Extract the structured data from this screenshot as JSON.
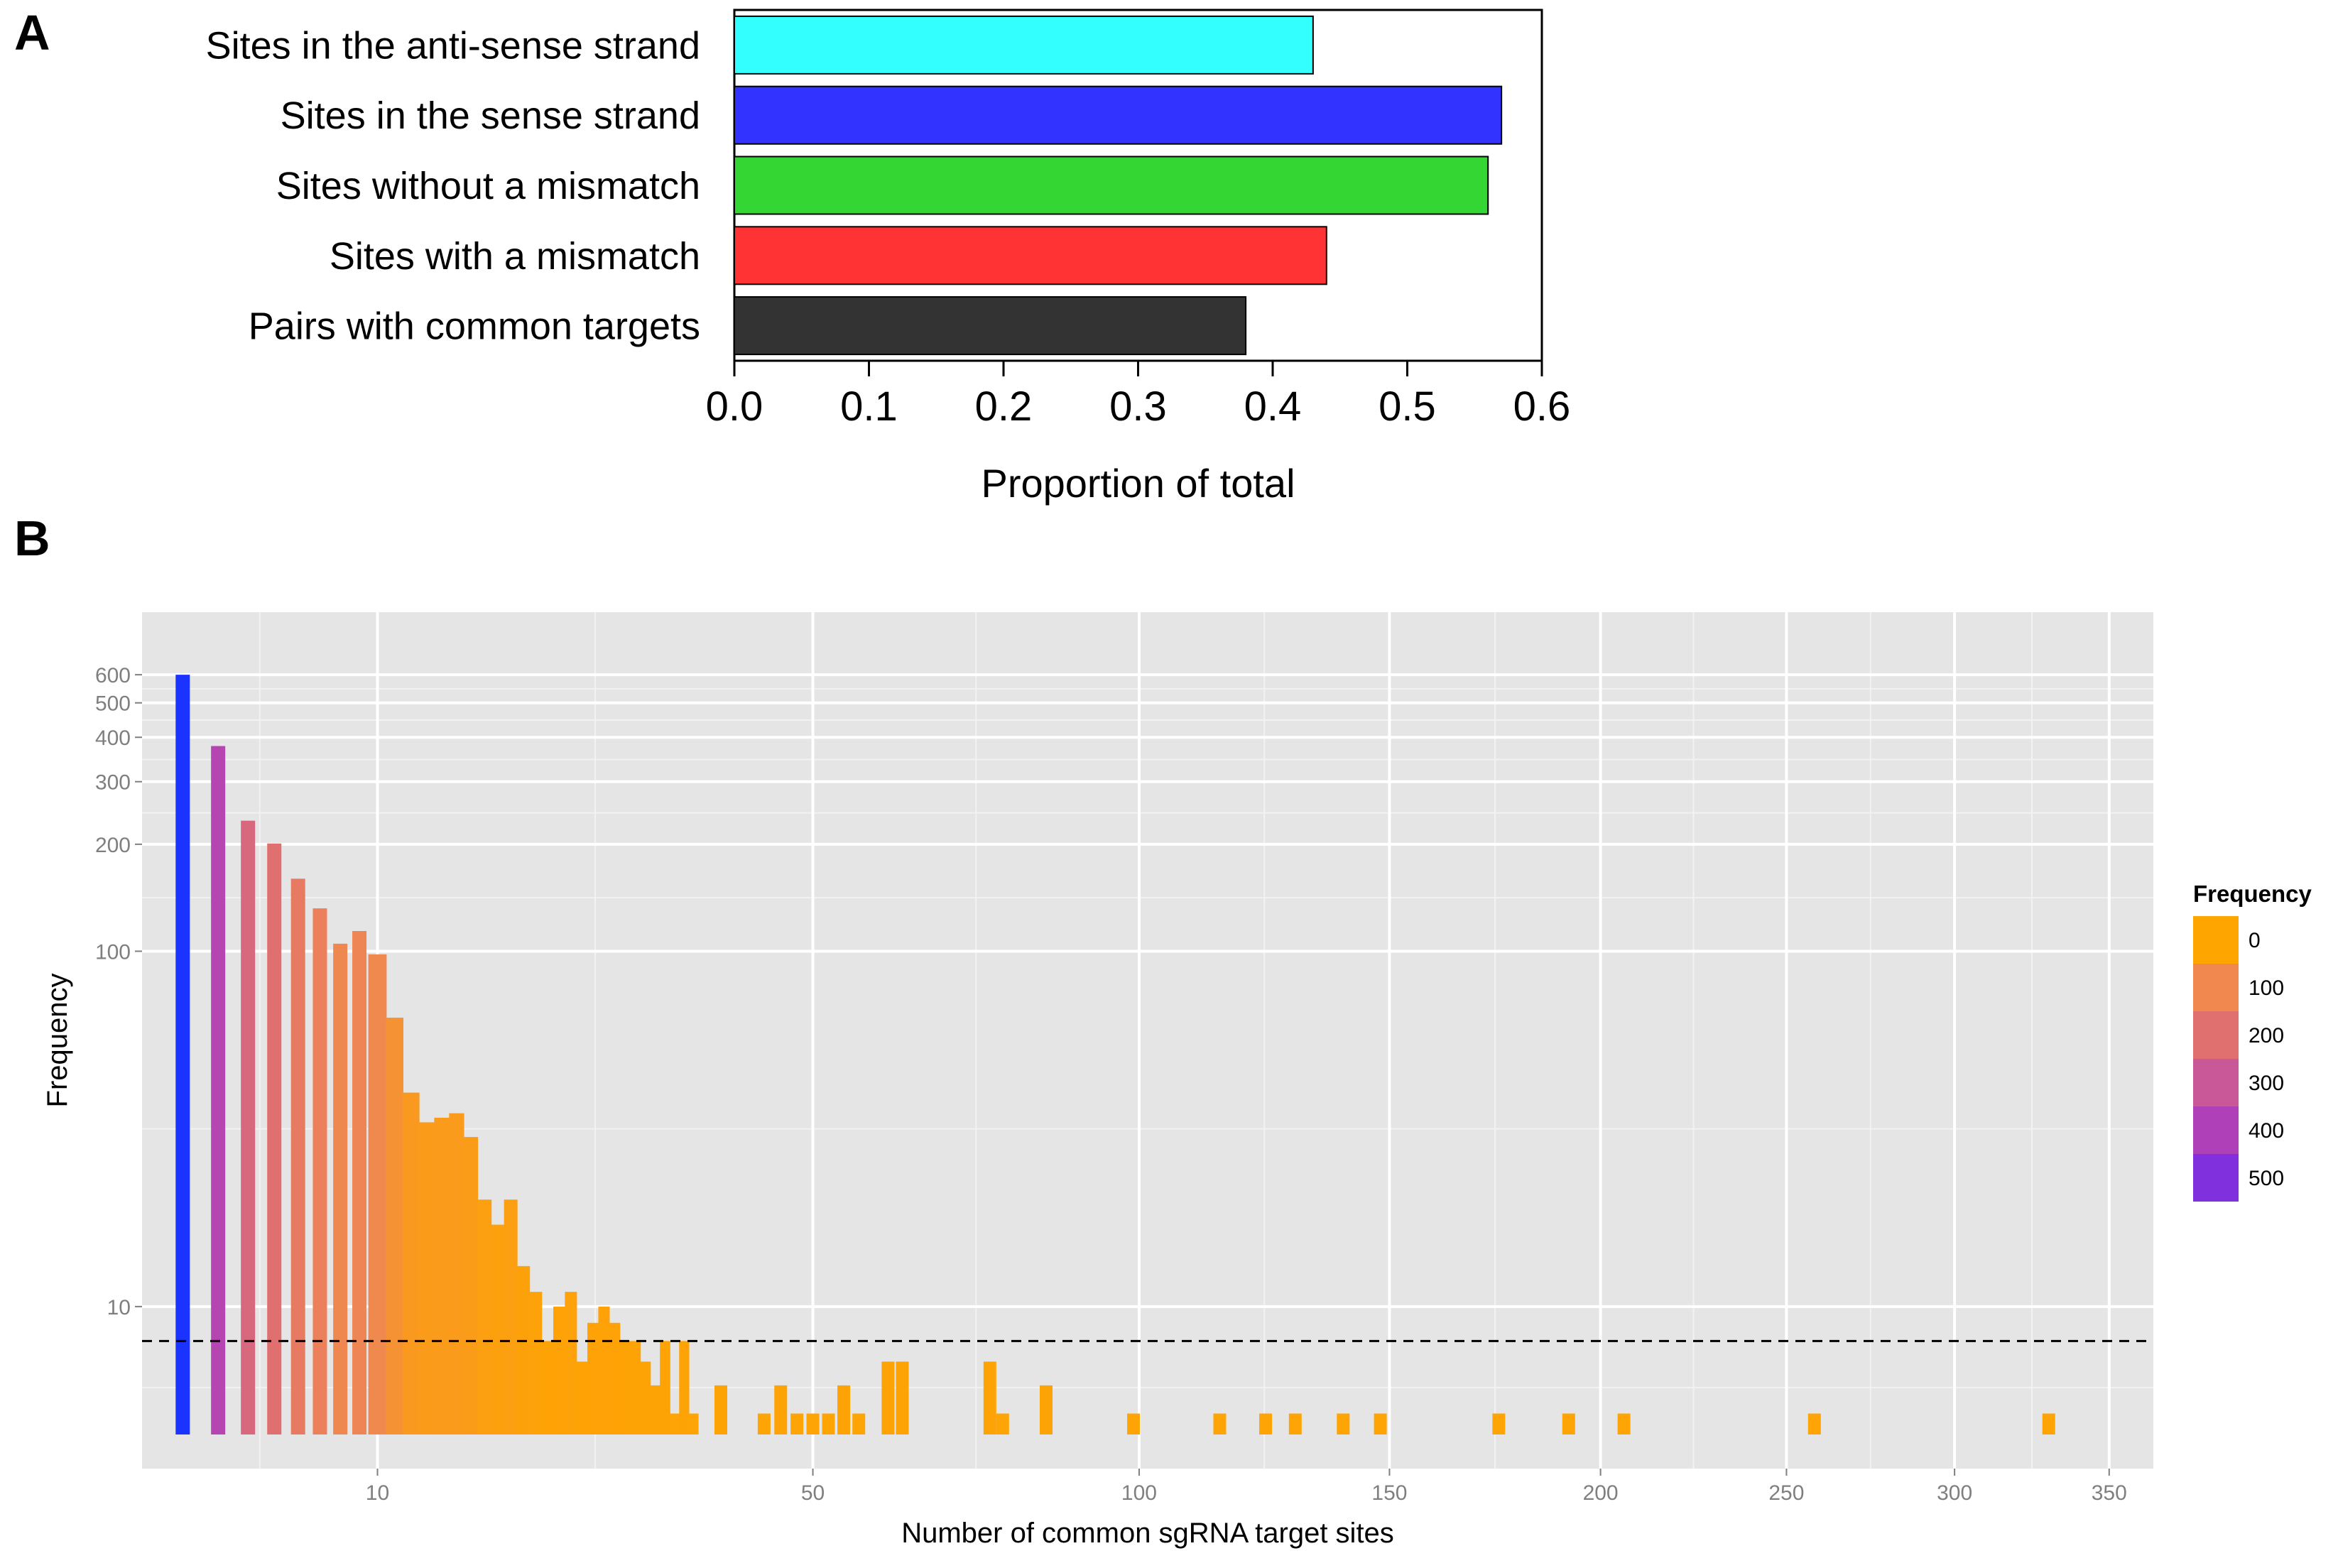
{
  "panels": {
    "a": "A",
    "b": "B"
  },
  "chart_data": [
    {
      "type": "bar",
      "orientation": "horizontal",
      "categories": [
        "Sites in the anti-sense strand",
        "Sites in the sense strand",
        "Sites without a mismatch",
        "Sites with a mismatch",
        "Pairs with common targets"
      ],
      "values": [
        0.43,
        0.57,
        0.56,
        0.44,
        0.38
      ],
      "colors": [
        "#33ffff",
        "#3333ff",
        "#33d633",
        "#ff3333",
        "#333333"
      ],
      "xlabel": "Proportion of total",
      "ylabel": "",
      "xlim": [
        0,
        0.6
      ],
      "xticks": [
        "0.0",
        "0.1",
        "0.2",
        "0.3",
        "0.4",
        "0.5",
        "0.6"
      ],
      "grid": false
    },
    {
      "type": "bar",
      "subtype": "histogram",
      "xlabel": "Number of common sgRNA target sites",
      "ylabel": "Frequency",
      "x_scale": "sqrt",
      "y_scale": "log",
      "xticks": [
        10,
        50,
        100,
        150,
        200,
        250,
        300,
        350
      ],
      "yticks": [
        10,
        100,
        200,
        300,
        400,
        500,
        600
      ],
      "xlim": [
        1.1,
        365
      ],
      "ylim": [
        3.5,
        900
      ],
      "reference_line": {
        "style": "dashed",
        "y": 8
      },
      "bars": [
        {
          "x": 2,
          "y": 600
        },
        {
          "x": 3,
          "y": 378
        },
        {
          "x": 4,
          "y": 233
        },
        {
          "x": 5,
          "y": 201
        },
        {
          "x": 6,
          "y": 160
        },
        {
          "x": 7,
          "y": 132
        },
        {
          "x": 8,
          "y": 105
        },
        {
          "x": 9,
          "y": 114
        },
        {
          "x": 10,
          "y": 98
        },
        {
          "x": 11,
          "y": 65
        },
        {
          "x": 12,
          "y": 40
        },
        {
          "x": 13,
          "y": 33
        },
        {
          "x": 14,
          "y": 34
        },
        {
          "x": 15,
          "y": 35
        },
        {
          "x": 16,
          "y": 30
        },
        {
          "x": 17,
          "y": 20
        },
        {
          "x": 18,
          "y": 17
        },
        {
          "x": 19,
          "y": 20
        },
        {
          "x": 20,
          "y": 13
        },
        {
          "x": 21,
          "y": 11
        },
        {
          "x": 22,
          "y": 8
        },
        {
          "x": 23,
          "y": 10
        },
        {
          "x": 24,
          "y": 11
        },
        {
          "x": 25,
          "y": 7
        },
        {
          "x": 26,
          "y": 9
        },
        {
          "x": 27,
          "y": 10
        },
        {
          "x": 28,
          "y": 9
        },
        {
          "x": 29,
          "y": 8
        },
        {
          "x": 30,
          "y": 8
        },
        {
          "x": 31,
          "y": 7
        },
        {
          "x": 32,
          "y": 6
        },
        {
          "x": 33,
          "y": 8
        },
        {
          "x": 34,
          "y": 5
        },
        {
          "x": 35,
          "y": 8
        },
        {
          "x": 36,
          "y": 5
        },
        {
          "x": 39,
          "y": 6
        },
        {
          "x": 44,
          "y": 5
        },
        {
          "x": 46,
          "y": 6
        },
        {
          "x": 48,
          "y": 5
        },
        {
          "x": 50,
          "y": 5
        },
        {
          "x": 52,
          "y": 5
        },
        {
          "x": 54,
          "y": 6
        },
        {
          "x": 56,
          "y": 5
        },
        {
          "x": 60,
          "y": 7
        },
        {
          "x": 62,
          "y": 7
        },
        {
          "x": 75,
          "y": 7
        },
        {
          "x": 77,
          "y": 5
        },
        {
          "x": 84,
          "y": 6
        },
        {
          "x": 99,
          "y": 5
        },
        {
          "x": 115,
          "y": 5
        },
        {
          "x": 124,
          "y": 5
        },
        {
          "x": 130,
          "y": 5
        },
        {
          "x": 140,
          "y": 5
        },
        {
          "x": 148,
          "y": 5
        },
        {
          "x": 175,
          "y": 5
        },
        {
          "x": 192,
          "y": 5
        },
        {
          "x": 206,
          "y": 5
        },
        {
          "x": 258,
          "y": 5
        },
        {
          "x": 330,
          "y": 5
        }
      ],
      "legend": {
        "title": "Frequency",
        "position": "right",
        "entries": [
          {
            "label": "0",
            "color": "#ffa500"
          },
          {
            "label": "100",
            "color": "#f0884f"
          },
          {
            "label": "200",
            "color": "#e07070"
          },
          {
            "label": "300",
            "color": "#c85898"
          },
          {
            "label": "400",
            "color": "#b040b8"
          },
          {
            "label": "500",
            "color": "#8030dc"
          }
        ]
      },
      "grid": true
    }
  ]
}
